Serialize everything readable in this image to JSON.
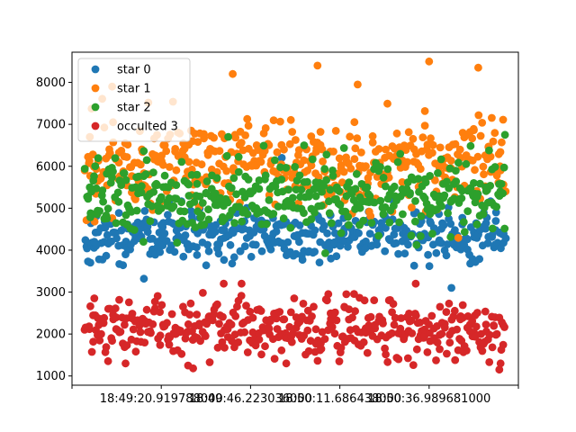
{
  "chart_data": {
    "type": "scatter",
    "title": "",
    "xlabel": "",
    "ylabel": "",
    "grid": false,
    "legend_position": "top-left",
    "x_domain": [
      0,
      100
    ],
    "ylim": [
      780,
      8720
    ],
    "y_ticks": [
      1000,
      2000,
      3000,
      4000,
      5000,
      6000,
      7000,
      8000
    ],
    "y_tick_labels": [
      "1000",
      "2000",
      "3000",
      "4000",
      "5000",
      "6000",
      "7000",
      "8000"
    ],
    "x_ticks": [
      0,
      20,
      40,
      60,
      80,
      100
    ],
    "x_tick_labels": [
      "",
      "18:49:20.919788000",
      "18:49:46.223036000",
      "18:50:11.686438000",
      "18:50:36.989681000",
      ""
    ],
    "points_per_series": 400,
    "series": [
      {
        "name": "star 0",
        "color": "#1f77b4",
        "center": 4350,
        "spread": 320,
        "sample_points": [
          [
            5,
            4200
          ],
          [
            12,
            3900
          ],
          [
            20,
            4600
          ],
          [
            33,
            4150
          ],
          [
            47,
            6200
          ],
          [
            58,
            3800
          ],
          [
            66,
            4700
          ],
          [
            75,
            4300
          ],
          [
            85,
            3100
          ],
          [
            95,
            4900
          ]
        ]
      },
      {
        "name": "star 1",
        "color": "#ff7f0e",
        "center": 6100,
        "spread": 550,
        "sample_points": [
          [
            4,
            6700
          ],
          [
            9,
            7900
          ],
          [
            27,
            6600
          ],
          [
            36,
            8200
          ],
          [
            55,
            8400
          ],
          [
            64,
            7950
          ],
          [
            80,
            8500
          ],
          [
            91,
            8350
          ],
          [
            96,
            5900
          ]
        ]
      },
      {
        "name": "star 2",
        "color": "#2ca02c",
        "center": 5300,
        "spread": 420,
        "sample_points": [
          [
            4,
            5500
          ],
          [
            16,
            4200
          ],
          [
            28,
            5800
          ],
          [
            35,
            6700
          ],
          [
            52,
            6500
          ],
          [
            62,
            4600
          ],
          [
            73,
            6100
          ],
          [
            90,
            5600
          ],
          [
            97,
            6750
          ]
        ]
      },
      {
        "name": "occulted 3",
        "color": "#d62728",
        "center": 2150,
        "spread": 360,
        "sample_points": [
          [
            5,
            2850
          ],
          [
            12,
            1300
          ],
          [
            26,
            1250
          ],
          [
            34,
            3200
          ],
          [
            48,
            1300
          ],
          [
            61,
            2650
          ],
          [
            77,
            3200
          ],
          [
            87,
            2350
          ],
          [
            96,
            1300
          ]
        ]
      }
    ]
  }
}
